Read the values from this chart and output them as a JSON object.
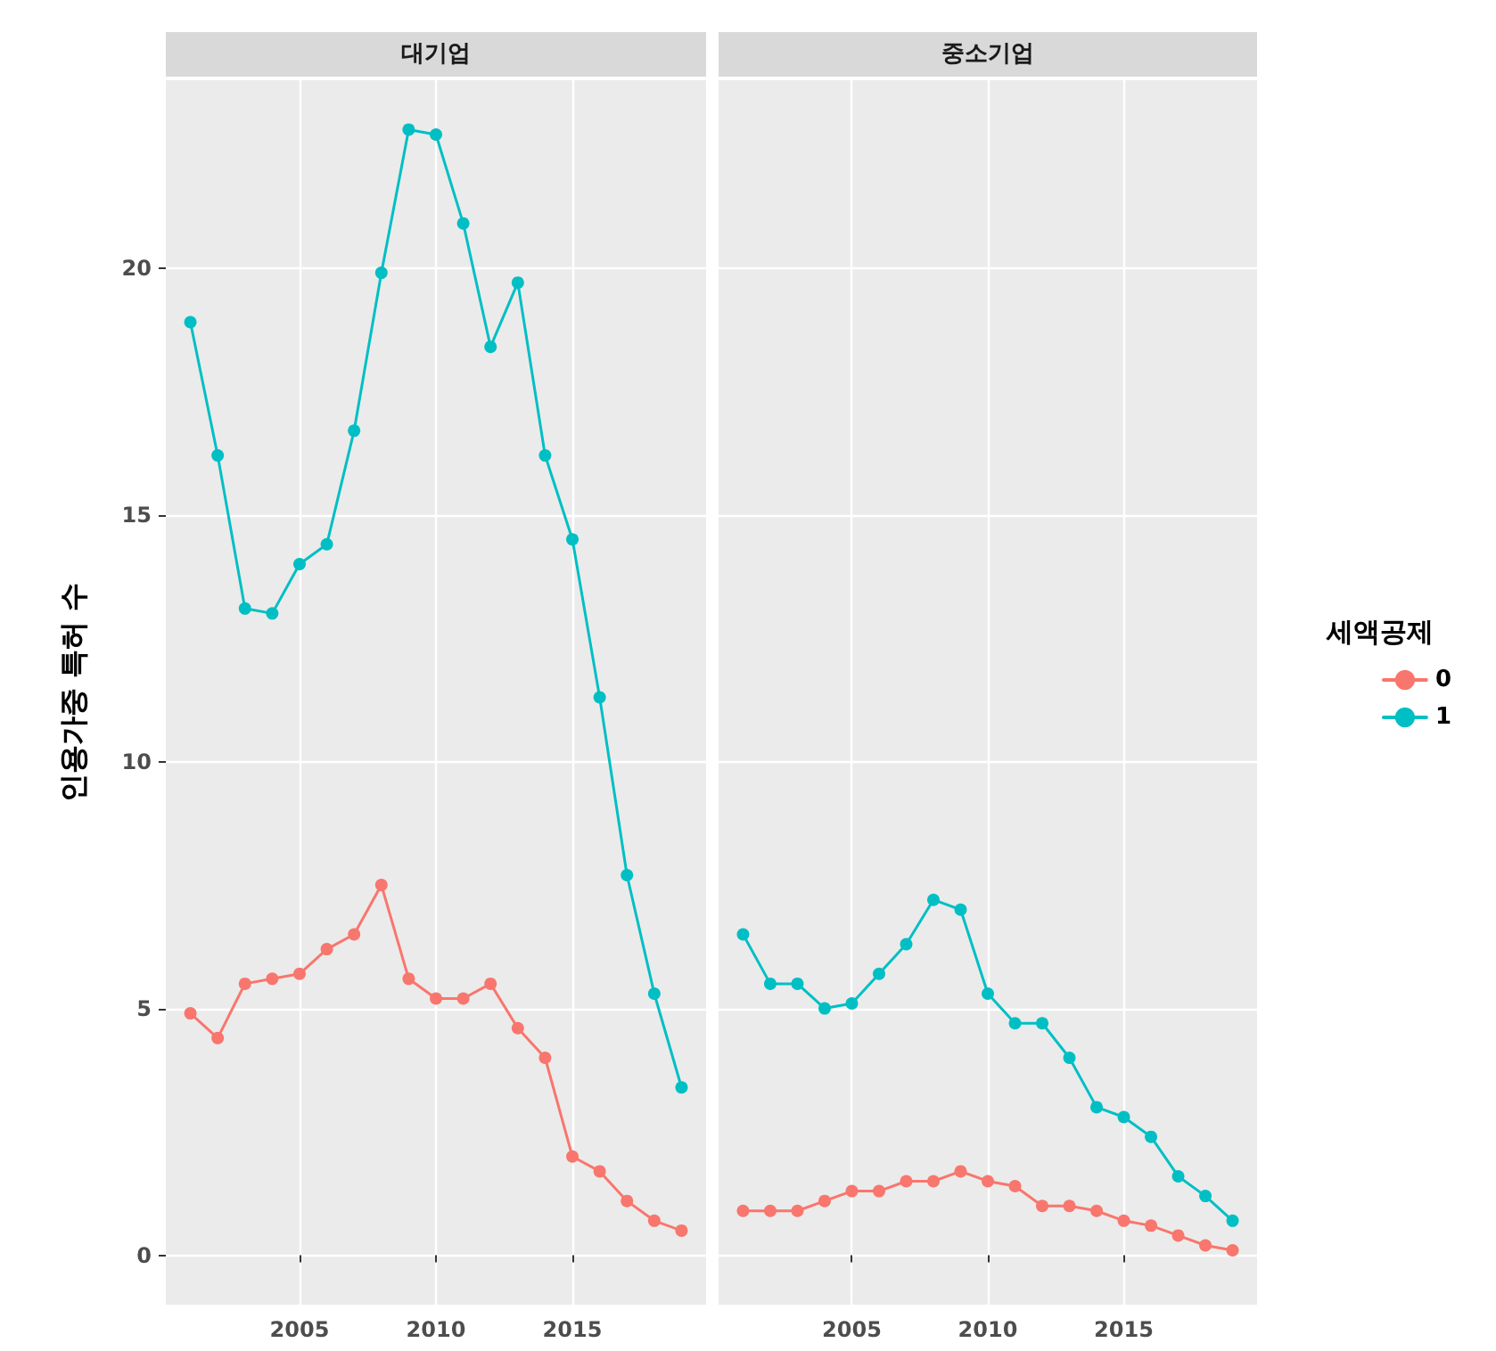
{
  "chart_data": [
    {
      "type": "line",
      "title": "대기업",
      "ylabel": "인용가중 특허 수",
      "x": [
        2001,
        2002,
        2003,
        2004,
        2005,
        2006,
        2007,
        2008,
        2009,
        2010,
        2011,
        2012,
        2013,
        2014,
        2015,
        2016,
        2017,
        2018,
        2019
      ],
      "xlim": [
        2000.1,
        2019.9
      ],
      "xticks": [
        2005,
        2010,
        2015
      ],
      "ylim": [
        -1.0,
        23.8
      ],
      "yticks": [
        0,
        5,
        10,
        15,
        20
      ],
      "grid": true,
      "marker": "circle",
      "legend": false,
      "series": [
        {
          "color": "#f8766d",
          "values": [
            4.9,
            4.4,
            5.5,
            5.6,
            5.7,
            6.2,
            6.5,
            7.5,
            5.6,
            5.2,
            5.2,
            5.5,
            4.6,
            4.0,
            2.0,
            1.7,
            1.1,
            0.7,
            0.5
          ]
        },
        {
          "color": "#00bfc4",
          "values": [
            18.9,
            16.2,
            13.1,
            13.0,
            14.0,
            14.4,
            16.7,
            19.9,
            22.8,
            22.7,
            20.9,
            18.4,
            19.7,
            16.2,
            14.5,
            11.3,
            7.7,
            5.3,
            3.4
          ]
        }
      ]
    },
    {
      "type": "line",
      "title": "중소기업",
      "legend_title": "세액공제",
      "x": [
        2001,
        2002,
        2003,
        2004,
        2005,
        2006,
        2007,
        2008,
        2009,
        2010,
        2011,
        2012,
        2013,
        2014,
        2015,
        2016,
        2017,
        2018,
        2019
      ],
      "xlim": [
        2000.1,
        2019.9
      ],
      "xticks": [
        2005,
        2010,
        2015
      ],
      "ylim": [
        -1.0,
        23.8
      ],
      "yticks": [
        0,
        5,
        10,
        15,
        20
      ],
      "grid": true,
      "marker": "circle",
      "legend": "right",
      "tick_labels": "x",
      "series": [
        {
          "name": "0",
          "color": "#f8766d",
          "values": [
            0.9,
            0.9,
            0.9,
            1.1,
            1.3,
            1.3,
            1.5,
            1.5,
            1.7,
            1.5,
            1.4,
            1.0,
            1.0,
            0.9,
            0.7,
            0.6,
            0.4,
            0.2,
            0.1
          ]
        },
        {
          "name": "1",
          "color": "#00bfc4",
          "values": [
            6.5,
            5.5,
            5.5,
            5.0,
            5.1,
            5.7,
            6.3,
            7.2,
            7.0,
            5.3,
            4.7,
            4.7,
            4.0,
            3.0,
            2.8,
            2.4,
            1.6,
            1.2,
            0.7
          ]
        }
      ]
    }
  ]
}
